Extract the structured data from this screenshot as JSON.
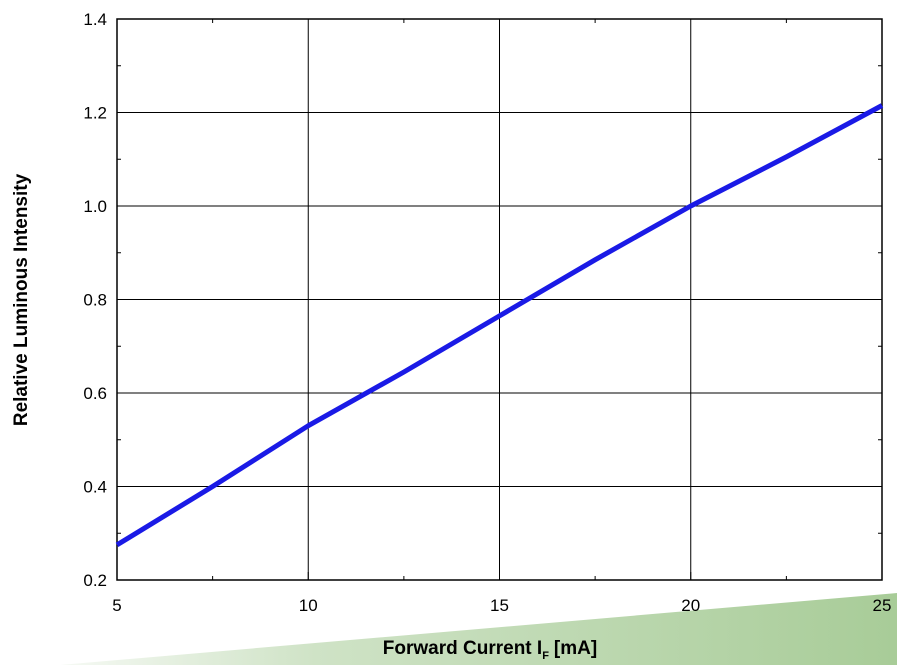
{
  "chart_data": {
    "type": "line",
    "xlabel": "Forward Current I",
    "xlabel_subscript": "F",
    "xlabel_unit": "[mA]",
    "ylabel": "Relative Luminous Intensity",
    "xlim": [
      5,
      25
    ],
    "ylim": [
      0.2,
      1.4
    ],
    "x_ticks": [
      5,
      10,
      15,
      20,
      25
    ],
    "x_tick_labels": [
      "5",
      "10",
      "15",
      "20",
      "25"
    ],
    "y_ticks": [
      0.2,
      0.4,
      0.6,
      0.8,
      1.0,
      1.2,
      1.4
    ],
    "y_tick_labels": [
      "0.2",
      "0.4",
      "0.6",
      "0.8",
      "1.0",
      "1.2",
      "1.4"
    ],
    "grid": true,
    "series": [
      {
        "color": "#1a1ae6",
        "x": [
          5,
          7.5,
          10,
          12.5,
          15,
          17.5,
          20,
          22.5,
          25
        ],
        "y": [
          0.275,
          0.4,
          0.53,
          0.645,
          0.765,
          0.885,
          1.0,
          1.105,
          1.215
        ]
      }
    ]
  },
  "colors": {
    "line": "#1a1ae6",
    "grid": "#000000",
    "background_accent": "#a8cc98"
  }
}
